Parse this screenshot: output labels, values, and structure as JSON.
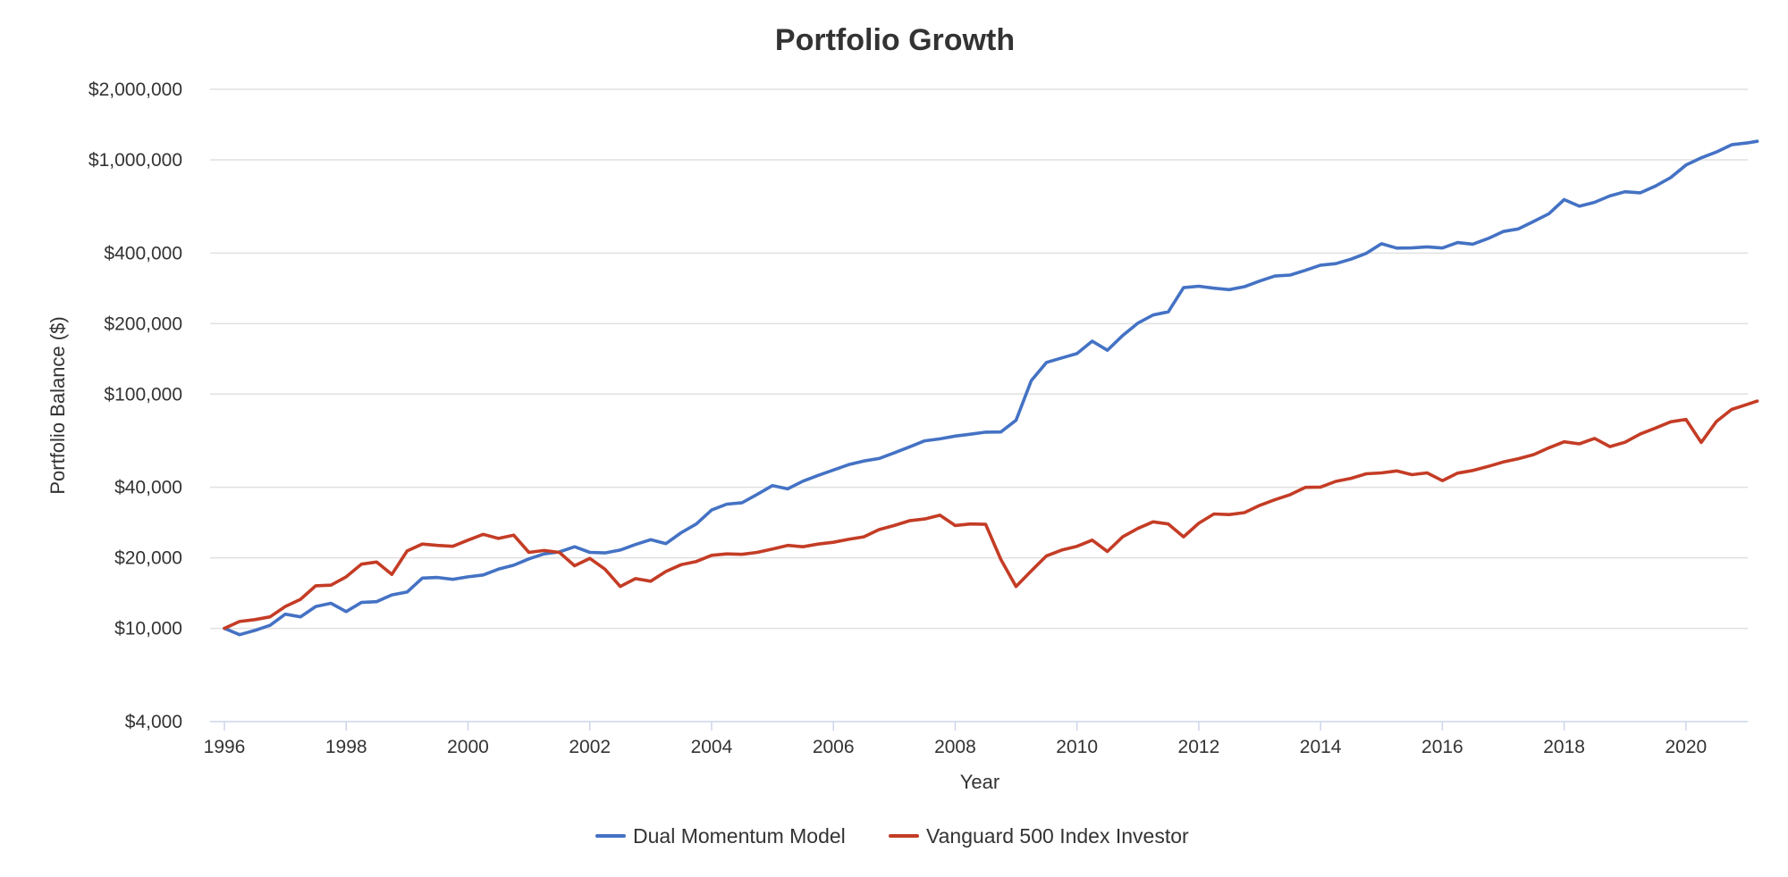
{
  "chart_data": {
    "type": "line",
    "title": "Portfolio Growth",
    "xlabel": "Year",
    "ylabel": "Portfolio Balance ($)",
    "y_scale": "log",
    "ylim": [
      4000,
      2000000
    ],
    "xlim": [
      1996,
      2021.25
    ],
    "x_ticks": [
      1996,
      1998,
      2000,
      2002,
      2004,
      2006,
      2008,
      2010,
      2012,
      2014,
      2016,
      2018,
      2020
    ],
    "x_tick_labels": [
      "1996",
      "1998",
      "2000",
      "2002",
      "2004",
      "2006",
      "2008",
      "2010",
      "2012",
      "2014",
      "2016",
      "2018",
      "2020"
    ],
    "y_ticks": [
      4000,
      10000,
      20000,
      40000,
      100000,
      200000,
      400000,
      1000000,
      2000000
    ],
    "y_tick_labels": [
      "$4,000",
      "$10,000",
      "$20,000",
      "$40,000",
      "$100,000",
      "$200,000",
      "$400,000",
      "$1,000,000",
      "$2,000,000"
    ],
    "grid": true,
    "legend_position": "bottom-center",
    "series": [
      {
        "name": "Dual Momentum Model",
        "color": "#4472c4",
        "x": [
          1996.0,
          1996.25,
          1996.5,
          1996.75,
          1997.0,
          1997.25,
          1997.5,
          1997.75,
          1998.0,
          1998.25,
          1998.5,
          1998.75,
          1999.0,
          1999.25,
          1999.5,
          1999.75,
          2000.0,
          2000.25,
          2000.5,
          2000.75,
          2001.0,
          2001.25,
          2001.5,
          2001.75,
          2002.0,
          2002.25,
          2002.5,
          2002.75,
          2003.0,
          2003.25,
          2003.5,
          2003.75,
          2004.0,
          2004.25,
          2004.5,
          2004.75,
          2005.0,
          2005.25,
          2005.5,
          2005.75,
          2006.0,
          2006.25,
          2006.5,
          2006.75,
          2007.0,
          2007.25,
          2007.5,
          2007.75,
          2008.0,
          2008.25,
          2008.5,
          2008.75,
          2009.0,
          2009.25,
          2009.5,
          2009.75,
          2010.0,
          2010.25,
          2010.5,
          2010.75,
          2011.0,
          2011.25,
          2011.5,
          2011.75,
          2012.0,
          2012.25,
          2012.5,
          2012.75,
          2013.0,
          2013.25,
          2013.5,
          2013.75,
          2014.0,
          2014.25,
          2014.5,
          2014.75,
          2015.0,
          2015.25,
          2015.5,
          2015.75,
          2016.0,
          2016.25,
          2016.5,
          2016.75,
          2017.0,
          2017.25,
          2017.5,
          2017.75,
          2018.0,
          2018.25,
          2018.5,
          2018.75,
          2019.0,
          2019.25,
          2019.5,
          2019.75,
          2020.0,
          2020.25,
          2020.5,
          2020.75,
          2021.0,
          2021.17
        ],
        "values": [
          10000,
          9400,
          9800,
          10300,
          11500,
          11200,
          12400,
          12800,
          11800,
          12900,
          13000,
          13900,
          14300,
          16400,
          16500,
          16200,
          16600,
          16900,
          17900,
          18600,
          19800,
          20800,
          21200,
          22300,
          21100,
          21000,
          21600,
          22800,
          23900,
          23000,
          25600,
          27900,
          32000,
          33900,
          34400,
          37300,
          40700,
          39400,
          42500,
          45000,
          47400,
          50000,
          51800,
          53100,
          56100,
          59500,
          63200,
          64400,
          66200,
          67400,
          68800,
          68900,
          77300,
          114300,
          136600,
          142700,
          149000,
          168300,
          153900,
          177900,
          201000,
          217600,
          224500,
          284800,
          288700,
          283300,
          279300,
          287500,
          303800,
          319000,
          322200,
          337500,
          355200,
          360500,
          376800,
          398700,
          438500,
          420100,
          420900,
          425200,
          420200,
          443400,
          436500,
          461400,
          494300,
          507400,
          546000,
          589000,
          676200,
          634000,
          658700,
          701000,
          730700,
          723000,
          773000,
          840000,
          950000,
          1020000,
          1080000,
          1160000,
          1180000,
          1200000
        ]
      },
      {
        "name": "Vanguard 500 Index Investor",
        "color": "#c43c25",
        "x": [
          1996.0,
          1996.25,
          1996.5,
          1996.75,
          1997.0,
          1997.25,
          1997.5,
          1997.75,
          1998.0,
          1998.25,
          1998.5,
          1998.75,
          1999.0,
          1999.25,
          1999.5,
          1999.75,
          2000.0,
          2000.25,
          2000.5,
          2000.75,
          2001.0,
          2001.25,
          2001.5,
          2001.75,
          2002.0,
          2002.25,
          2002.5,
          2002.75,
          2003.0,
          2003.25,
          2003.5,
          2003.75,
          2004.0,
          2004.25,
          2004.5,
          2004.75,
          2005.0,
          2005.25,
          2005.5,
          2005.75,
          2006.0,
          2006.25,
          2006.5,
          2006.75,
          2007.0,
          2007.25,
          2007.5,
          2007.75,
          2008.0,
          2008.25,
          2008.5,
          2008.75,
          2009.0,
          2009.25,
          2009.5,
          2009.75,
          2010.0,
          2010.25,
          2010.5,
          2010.75,
          2011.0,
          2011.25,
          2011.5,
          2011.75,
          2012.0,
          2012.25,
          2012.5,
          2012.75,
          2013.0,
          2013.25,
          2013.5,
          2013.75,
          2014.0,
          2014.25,
          2014.5,
          2014.75,
          2015.0,
          2015.25,
          2015.5,
          2015.75,
          2016.0,
          2016.25,
          2016.5,
          2016.75,
          2017.0,
          2017.25,
          2017.5,
          2017.75,
          2018.0,
          2018.25,
          2018.5,
          2018.75,
          2019.0,
          2019.25,
          2019.5,
          2019.75,
          2020.0,
          2020.25,
          2020.5,
          2020.75,
          2021.0,
          2021.17
        ],
        "values": [
          10000,
          10700,
          10900,
          11200,
          12400,
          13300,
          15200,
          15300,
          16600,
          18800,
          19200,
          17000,
          21400,
          22900,
          22600,
          22400,
          23800,
          25200,
          24200,
          25000,
          21100,
          21500,
          21100,
          18500,
          19900,
          17900,
          15100,
          16300,
          15900,
          17500,
          18700,
          19300,
          20500,
          20800,
          20700,
          21100,
          21800,
          22600,
          22300,
          22900,
          23300,
          24000,
          24600,
          26400,
          27500,
          28800,
          29300,
          30400,
          27500,
          27900,
          27800,
          19700,
          15100,
          17600,
          20400,
          21600,
          22400,
          23800,
          21300,
          24600,
          26700,
          28500,
          27900,
          24600,
          28100,
          30800,
          30600,
          31200,
          33500,
          35400,
          37200,
          40000,
          40100,
          42400,
          43700,
          45700,
          46100,
          47000,
          45300,
          46100,
          42700,
          46000,
          47200,
          49100,
          51300,
          53000,
          55200,
          59000,
          62600,
          61300,
          64700,
          59700,
          62300,
          67600,
          71600,
          76200,
          78000,
          62200,
          76400,
          86000,
          90300,
          93400
        ]
      }
    ]
  }
}
